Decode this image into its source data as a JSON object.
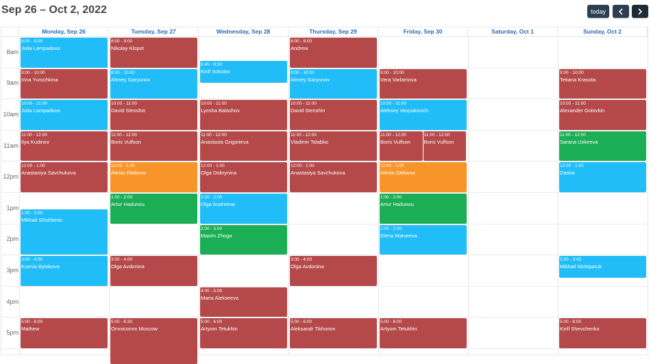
{
  "header": {
    "title": "Sep 26 – Oct 2, 2022",
    "today_label": "today",
    "prev_icon": "chevron-left-icon",
    "next_icon": "chevron-right-icon"
  },
  "colors": {
    "red": "#b5494a",
    "blue": "#20bdf9",
    "orange": "#f7952a",
    "green": "#1cae55",
    "button": "#2c3e50",
    "day_header": "#2a6ab4"
  },
  "days": [
    "Monday, Sep 26",
    "Tuesday, Sep 27",
    "Wednesday, Sep 28",
    "Thursday, Sep 29",
    "Friday, Sep 30",
    "Saturday, Oct 1",
    "Sunday, Oct 2"
  ],
  "hours": [
    "8am",
    "9am",
    "10am",
    "11am",
    "12pm",
    "1pm",
    "2pm",
    "3pm",
    "4pm",
    "5pm"
  ],
  "events": [
    {
      "day": 0,
      "start": "08:00",
      "end": "09:00",
      "time": "8:00 - 9:00",
      "name": "Julia Lampadova",
      "color": "blue"
    },
    {
      "day": 0,
      "start": "09:00",
      "end": "10:00",
      "time": "9:00 - 10:00",
      "name": "Irina Yurochkina",
      "color": "red"
    },
    {
      "day": 0,
      "start": "10:00",
      "end": "11:00",
      "time": "10:00 - 11:00",
      "name": "Julia Lampadova",
      "color": "blue"
    },
    {
      "day": 0,
      "start": "11:00",
      "end": "12:00",
      "time": "11:00 - 12:00",
      "name": "Ilya Kudinov",
      "color": "red"
    },
    {
      "day": 0,
      "start": "12:00",
      "end": "13:00",
      "time": "12:00 - 1:00",
      "name": "Anastasiya Savchukova",
      "color": "red"
    },
    {
      "day": 0,
      "start": "13:30",
      "end": "15:00",
      "time": "1:30 - 3:00",
      "name": "Mikhail Shishlenin",
      "color": "blue"
    },
    {
      "day": 0,
      "start": "15:00",
      "end": "16:00",
      "time": "3:00 - 4:00",
      "name": "Ksenia Bytakova",
      "color": "blue"
    },
    {
      "day": 0,
      "start": "17:00",
      "end": "18:00",
      "time": "5:00 - 6:00",
      "name": "Mathew",
      "color": "red"
    },
    {
      "day": 1,
      "start": "08:00",
      "end": "09:00",
      "time": "8:00 - 9:00",
      "name": "Nikolay Klopot",
      "color": "red"
    },
    {
      "day": 1,
      "start": "09:00",
      "end": "10:00",
      "time": "9:00 - 10:00",
      "name": "Alexey Garyunov",
      "color": "blue"
    },
    {
      "day": 1,
      "start": "10:00",
      "end": "11:00",
      "time": "10:00 - 11:00",
      "name": "David Stenshin",
      "color": "red"
    },
    {
      "day": 1,
      "start": "11:00",
      "end": "12:00",
      "time": "11:00 - 12:00",
      "name": "Boris Vulfson",
      "color": "red"
    },
    {
      "day": 1,
      "start": "12:00",
      "end": "13:00",
      "time": "12:00 - 1:00",
      "name": "Alesia Glebova",
      "color": "orange"
    },
    {
      "day": 1,
      "start": "13:00",
      "end": "14:00",
      "time": "1:00 - 2:00",
      "name": "Artur Hadunou",
      "color": "green"
    },
    {
      "day": 1,
      "start": "15:00",
      "end": "16:00",
      "time": "3:00 - 4:00",
      "name": "Olga Avdonina",
      "color": "red"
    },
    {
      "day": 1,
      "start": "17:00",
      "end": "18:30",
      "time": "5:00 - 6:30",
      "name": "Omnicomm Moscow",
      "color": "red"
    },
    {
      "day": 2,
      "start": "08:45",
      "end": "09:30",
      "time": "8:45 - 9:30",
      "name": "Kirill Sokolov",
      "color": "blue"
    },
    {
      "day": 2,
      "start": "10:00",
      "end": "11:00",
      "time": "10:00 - 11:00",
      "name": "Lyosha Balashov",
      "color": "red"
    },
    {
      "day": 2,
      "start": "11:00",
      "end": "12:00",
      "time": "11:00 - 12:00",
      "name": "Anastasia Grigorieva",
      "color": "red"
    },
    {
      "day": 2,
      "start": "12:00",
      "end": "13:00",
      "time": "12:00 - 1:00",
      "name": "Olga Dobrynina",
      "color": "red"
    },
    {
      "day": 2,
      "start": "13:00",
      "end": "14:00",
      "time": "1:00 - 2:00",
      "name": "Olga Andreeva",
      "color": "blue"
    },
    {
      "day": 2,
      "start": "14:00",
      "end": "15:00",
      "time": "2:00 - 3:00",
      "name": "Maxim Zhoga",
      "color": "green"
    },
    {
      "day": 2,
      "start": "16:00",
      "end": "17:00",
      "time": "4:00 - 5:00",
      "name": "Maria Alekseeva",
      "color": "red"
    },
    {
      "day": 2,
      "start": "17:00",
      "end": "18:00",
      "time": "5:00 - 6:00",
      "name": "Artyom Tetukhin",
      "color": "red"
    },
    {
      "day": 3,
      "start": "08:00",
      "end": "09:00",
      "time": "8:00 - 9:00",
      "name": "Andrew",
      "color": "red"
    },
    {
      "day": 3,
      "start": "09:00",
      "end": "10:00",
      "time": "9:00 - 10:00",
      "name": "Alexey Garyunov",
      "color": "blue"
    },
    {
      "day": 3,
      "start": "10:00",
      "end": "11:00",
      "time": "10:00 - 11:00",
      "name": "David Stenshin",
      "color": "red"
    },
    {
      "day": 3,
      "start": "11:00",
      "end": "12:00",
      "time": "11:00 - 12:00",
      "name": "Vladimir Talabko",
      "color": "red"
    },
    {
      "day": 3,
      "start": "12:00",
      "end": "13:00",
      "time": "12:00 - 1:00",
      "name": "Anastasiya Savchukova",
      "color": "red"
    },
    {
      "day": 3,
      "start": "15:00",
      "end": "16:00",
      "time": "3:00 - 4:00",
      "name": "Olga Avdonina",
      "color": "red"
    },
    {
      "day": 3,
      "start": "17:00",
      "end": "18:00",
      "time": "5:00 - 6:00",
      "name": "Aleksandr Tikhonov",
      "color": "red"
    },
    {
      "day": 4,
      "start": "09:00",
      "end": "10:00",
      "time": "9:00 - 10:00",
      "name": "Vera Varlamova",
      "color": "red"
    },
    {
      "day": 4,
      "start": "10:00",
      "end": "11:00",
      "time": "10:00 - 11:00",
      "name": "Aleksey Vasyukovich",
      "color": "blue"
    },
    {
      "day": 4,
      "start": "11:00",
      "end": "12:00",
      "time": "11:00 - 12:00",
      "name": "Boris Vulfson",
      "color": "red",
      "lane": 0,
      "lanes": 2
    },
    {
      "day": 4,
      "start": "11:00",
      "end": "12:00",
      "time": "11:00 - 12:00",
      "name": "Boris Vulfson",
      "color": "red",
      "lane": 1,
      "lanes": 2
    },
    {
      "day": 4,
      "start": "12:00",
      "end": "13:00",
      "time": "12:00 - 1:00",
      "name": "Alesia Glebova",
      "color": "orange"
    },
    {
      "day": 4,
      "start": "13:00",
      "end": "14:00",
      "time": "1:00 - 2:00",
      "name": "Artur Hadunou",
      "color": "green"
    },
    {
      "day": 4,
      "start": "14:00",
      "end": "15:00",
      "time": "2:00 - 3:00",
      "name": "Elena Matveeva",
      "color": "blue"
    },
    {
      "day": 4,
      "start": "17:00",
      "end": "18:00",
      "time": "5:00 - 6:00",
      "name": "Artyom Tetukhin",
      "color": "red"
    },
    {
      "day": 6,
      "start": "09:00",
      "end": "10:00",
      "time": "9:00 - 10:00",
      "name": "Tetiana Krasota",
      "color": "red"
    },
    {
      "day": 6,
      "start": "10:00",
      "end": "11:00",
      "time": "10:00 - 11:00",
      "name": "Alexander Golovkin",
      "color": "red"
    },
    {
      "day": 6,
      "start": "11:00",
      "end": "12:00",
      "time": "11:00 - 12:00",
      "name": "Sarana Uskeeva",
      "color": "green"
    },
    {
      "day": 6,
      "start": "12:00",
      "end": "13:00",
      "time": "12:00 - 1:00",
      "name": "Dasha",
      "color": "blue"
    },
    {
      "day": 6,
      "start": "15:00",
      "end": "15:45",
      "time": "3:00 - 3:45",
      "name": "Mikhail Nichiporuk",
      "color": "blue"
    },
    {
      "day": 6,
      "start": "17:00",
      "end": "18:00",
      "time": "5:00 - 6:00",
      "name": "Kirill Shevchenko",
      "color": "red"
    }
  ]
}
